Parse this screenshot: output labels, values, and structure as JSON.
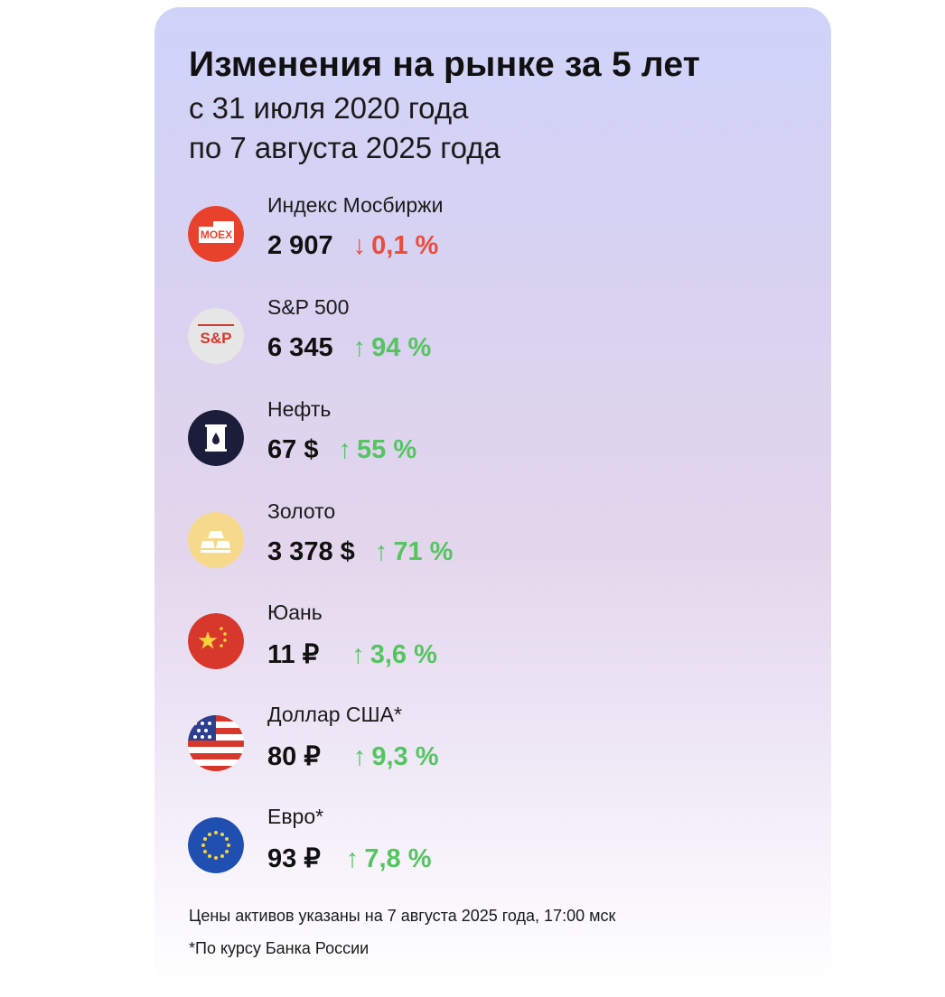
{
  "title": "Изменения на рынке за 5 лет",
  "subtitle_line1": "с 31 июля 2020 года",
  "subtitle_line2": "по 7 августа 2025 года",
  "assets": [
    {
      "name": "Индекс Мосбиржи",
      "value": "2 907",
      "arrow": "↓",
      "change": "0,1 %",
      "direction": "down",
      "icon": "moex-logo-icon",
      "icon_text": "MOEX"
    },
    {
      "name": "S&P 500",
      "value": "6 345",
      "arrow": "↑",
      "change": "94 %",
      "direction": "up",
      "icon": "sp500-logo-icon",
      "icon_text": "S&P"
    },
    {
      "name": "Нефть",
      "value": "67 $",
      "arrow": "↑",
      "change": "55 %",
      "direction": "up",
      "icon": "oil-barrel-icon"
    },
    {
      "name": "Золото",
      "value": "3 378 $",
      "arrow": "↑",
      "change": "71 %",
      "direction": "up",
      "icon": "gold-bars-icon"
    },
    {
      "name": "Юань",
      "value": "11 ₽",
      "arrow": "↑",
      "change": "3,6 %",
      "direction": "up",
      "icon": "china-flag-icon"
    },
    {
      "name": "Доллар США*",
      "value": "80 ₽",
      "arrow": "↑",
      "change": "9,3 %",
      "direction": "up",
      "icon": "usa-flag-icon"
    },
    {
      "name": "Евро*",
      "value": "93 ₽",
      "arrow": "↑",
      "change": "7,8 %",
      "direction": "up",
      "icon": "eu-flag-icon"
    }
  ],
  "footnote_prices": "Цены активов указаны на 7 августа 2025 года, 17:00 мск",
  "footnote_rate": "*По курсу Банка России",
  "colors": {
    "up": "#55c461",
    "down": "#e84d3d",
    "moex": "#e8422c",
    "oil": "#1b1d3a",
    "gold": "#f6d98a",
    "china": "#d8382b",
    "eu": "#1f4fb0"
  }
}
